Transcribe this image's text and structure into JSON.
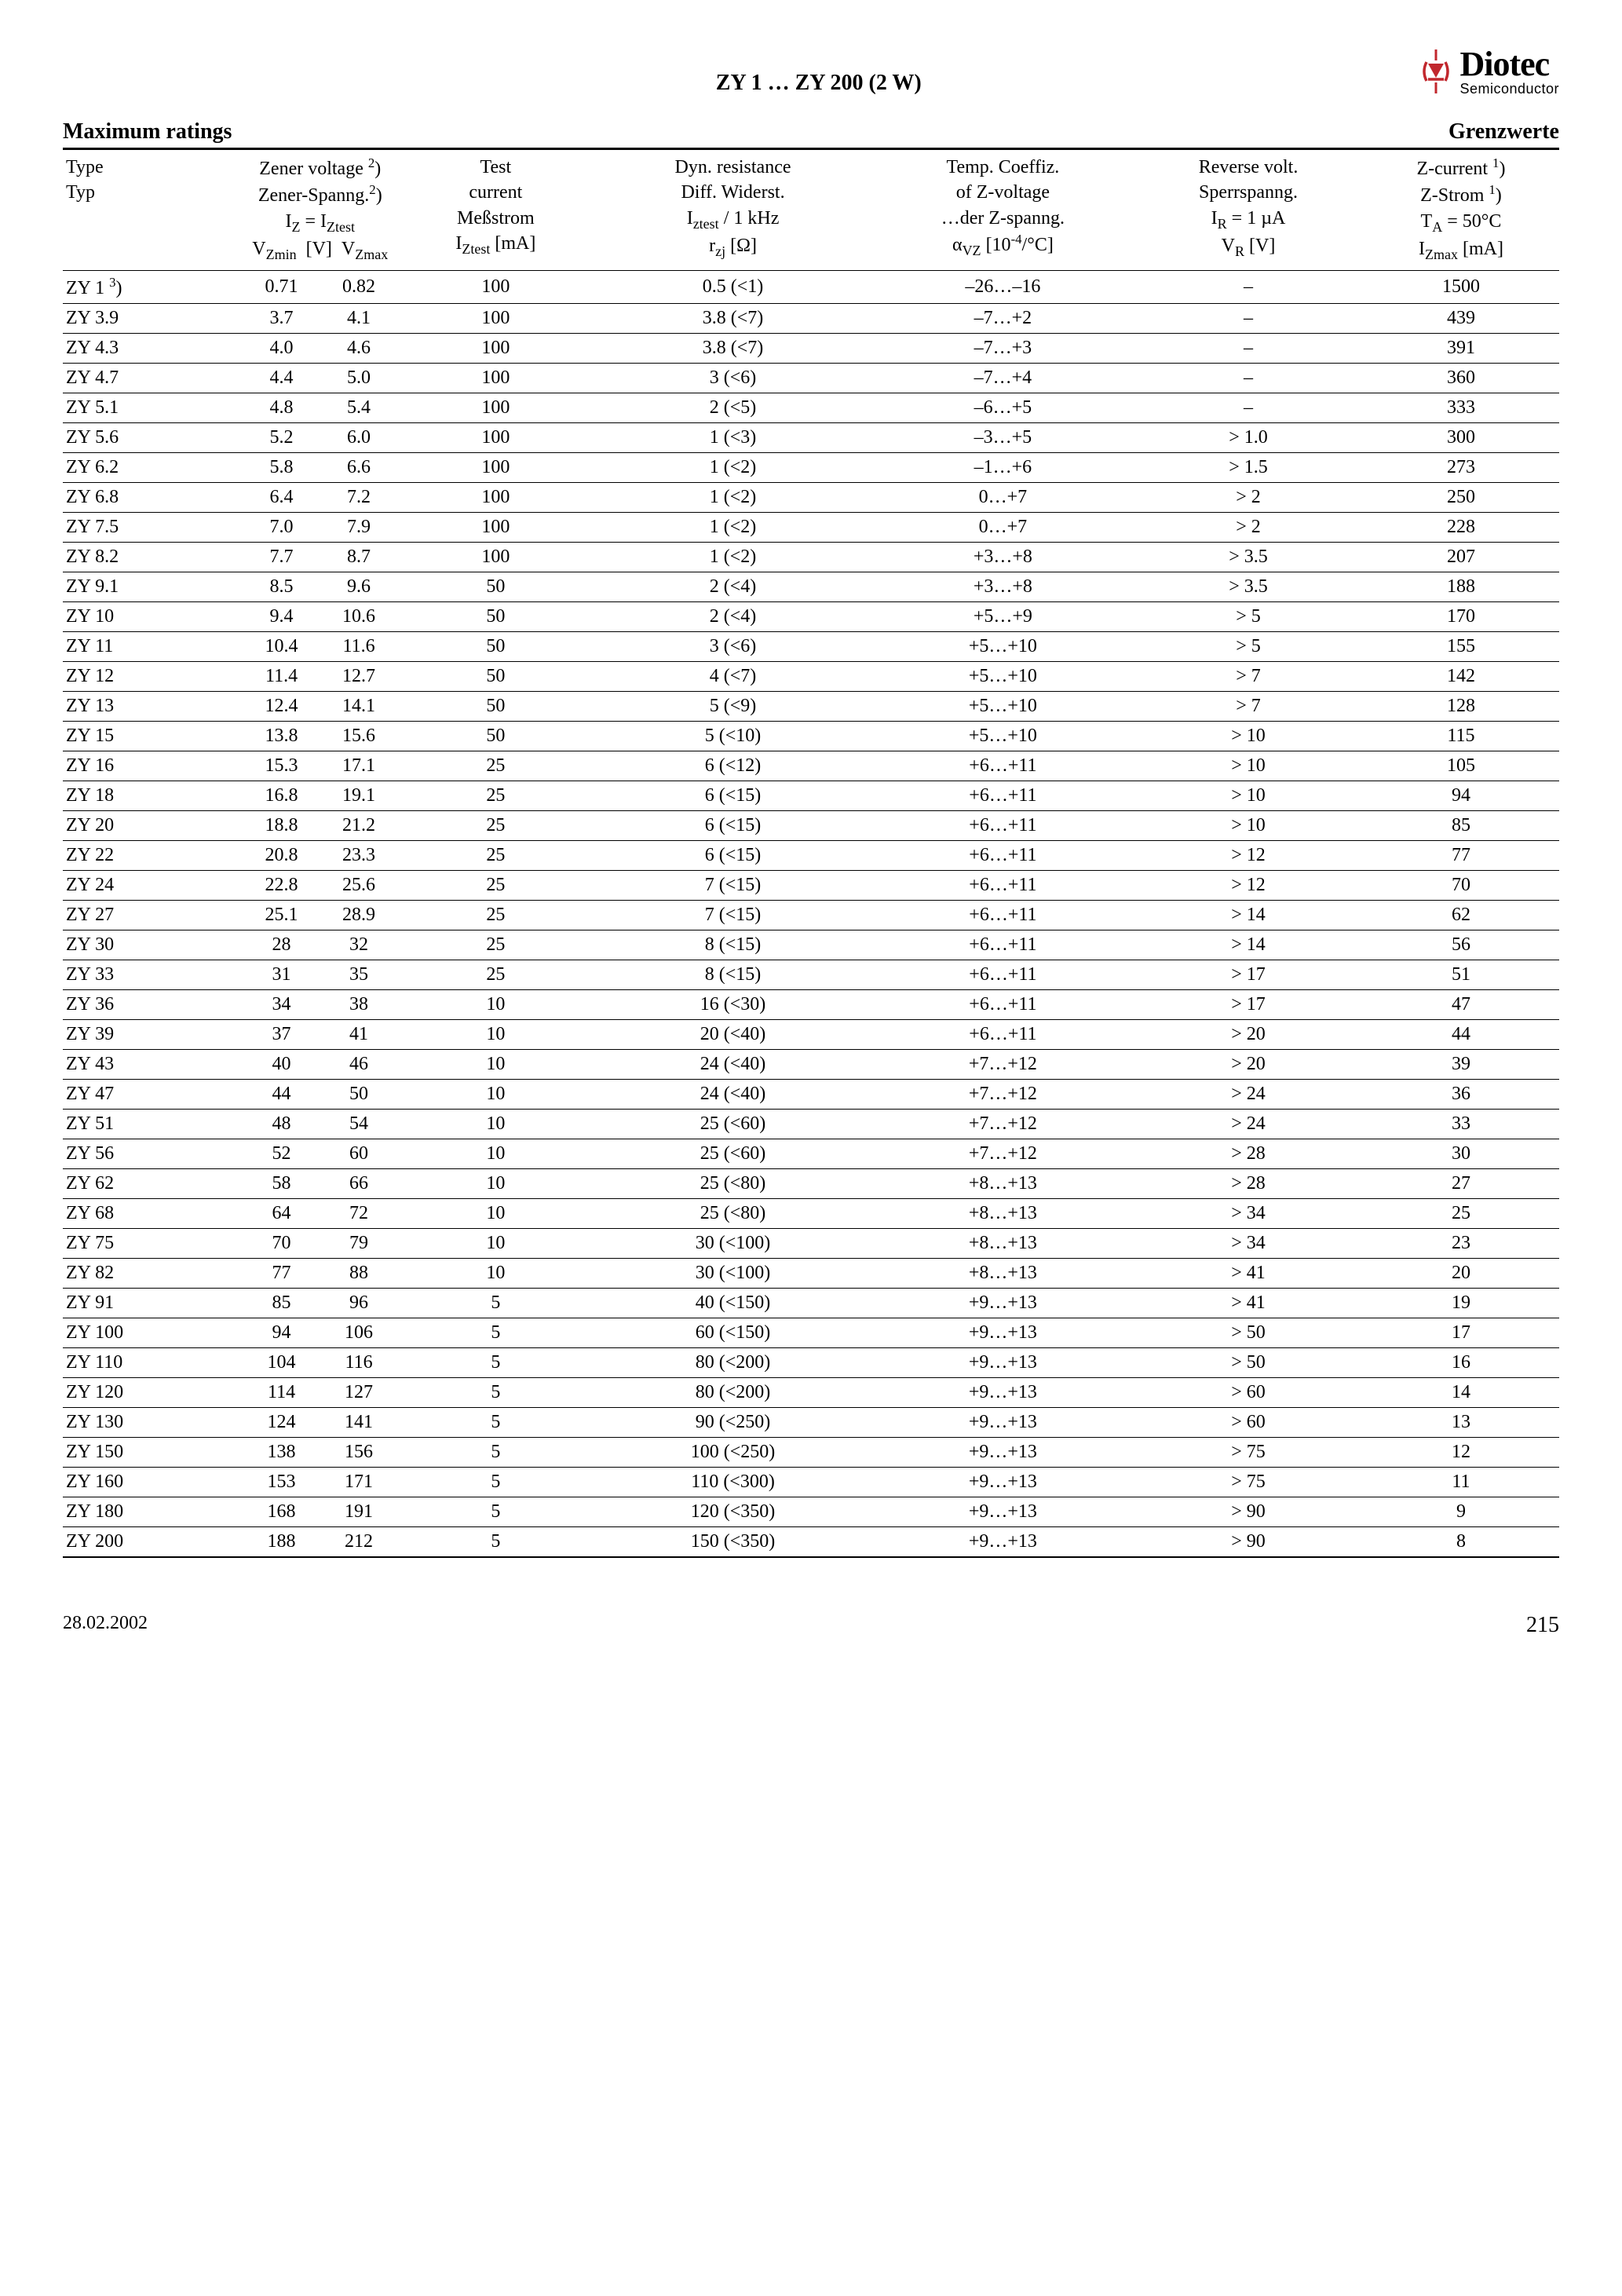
{
  "doc_title": "ZY 1 … ZY 200 (2 W)",
  "logo": {
    "big": "Diotec",
    "small": "Semiconductor"
  },
  "section": {
    "left": "Maximum ratings",
    "right": "Grenzwerte"
  },
  "header": {
    "type_l1": "Type",
    "type_l2": "Typ",
    "zener_l1": "Zener voltage ²)",
    "zener_l2": "Zener-Spanng.²)",
    "zener_l3": "I_Z = I_Ztest",
    "zener_l4a": "V_Zmin",
    "zener_l4b": "[V]",
    "zener_l4c": "V_Zmax",
    "test_l1": "Test",
    "test_l2": "current",
    "test_l3": "Meßstrom",
    "test_l4": "I_Ztest [mA]",
    "dyn_l1": "Dyn. resistance",
    "dyn_l2": "Diff. Widerst.",
    "dyn_l3": "I_ztest / 1 kHz",
    "dyn_l4": "r_zj [Ω]",
    "temp_l1": "Temp. Coeffiz.",
    "temp_l2": "of Z-voltage",
    "temp_l3": "…der Z-spanng.",
    "temp_l4": "α_VZ [10⁻⁴/°C]",
    "rev_l1": "Reverse volt.",
    "rev_l2": "Sperrspanng.",
    "rev_l3": "I_R = 1 µA",
    "rev_l4": "V_R [V]",
    "zc_l1": "Z-current ¹)",
    "zc_l2": "Z-Strom ¹)",
    "zc_l3": "T_A = 50°C",
    "zc_l4": "I_Zmax [mA]"
  },
  "rows": [
    {
      "type": "ZY 1 ³)",
      "vzmin": "0.71",
      "vzmax": "0.82",
      "iztest": "100",
      "rzj": "0.5 (<1)",
      "alpha": "–26…–16",
      "vr": "–",
      "izmax": "1500"
    },
    {
      "type": "ZY 3.9",
      "vzmin": "3.7",
      "vzmax": "4.1",
      "iztest": "100",
      "rzj": "3.8 (<7)",
      "alpha": "–7…+2",
      "vr": "–",
      "izmax": "439"
    },
    {
      "type": "ZY 4.3",
      "vzmin": "4.0",
      "vzmax": "4.6",
      "iztest": "100",
      "rzj": "3.8 (<7)",
      "alpha": "–7…+3",
      "vr": "–",
      "izmax": "391"
    },
    {
      "type": "ZY 4.7",
      "vzmin": "4.4",
      "vzmax": "5.0",
      "iztest": "100",
      "rzj": "3 (<6)",
      "alpha": "–7…+4",
      "vr": "–",
      "izmax": "360"
    },
    {
      "type": "ZY 5.1",
      "vzmin": "4.8",
      "vzmax": "5.4",
      "iztest": "100",
      "rzj": "2 (<5)",
      "alpha": "–6…+5",
      "vr": "–",
      "izmax": "333"
    },
    {
      "type": "ZY 5.6",
      "vzmin": "5.2",
      "vzmax": "6.0",
      "iztest": "100",
      "rzj": "1 (<3)",
      "alpha": "–3…+5",
      "vr": "> 1.0",
      "izmax": "300"
    },
    {
      "type": "ZY 6.2",
      "vzmin": "5.8",
      "vzmax": "6.6",
      "iztest": "100",
      "rzj": "1 (<2)",
      "alpha": "–1…+6",
      "vr": "> 1.5",
      "izmax": "273"
    },
    {
      "type": "ZY 6.8",
      "vzmin": "6.4",
      "vzmax": "7.2",
      "iztest": "100",
      "rzj": "1 (<2)",
      "alpha": "0…+7",
      "vr": "> 2",
      "izmax": "250"
    },
    {
      "type": "ZY 7.5",
      "vzmin": "7.0",
      "vzmax": "7.9",
      "iztest": "100",
      "rzj": "1 (<2)",
      "alpha": "0…+7",
      "vr": "> 2",
      "izmax": "228"
    },
    {
      "type": "ZY 8.2",
      "vzmin": "7.7",
      "vzmax": "8.7",
      "iztest": "100",
      "rzj": "1 (<2)",
      "alpha": "+3…+8",
      "vr": "> 3.5",
      "izmax": "207"
    },
    {
      "type": "ZY 9.1",
      "vzmin": "8.5",
      "vzmax": "9.6",
      "iztest": "50",
      "rzj": "2 (<4)",
      "alpha": "+3…+8",
      "vr": "> 3.5",
      "izmax": "188"
    },
    {
      "type": "ZY 10",
      "vzmin": "9.4",
      "vzmax": "10.6",
      "iztest": "50",
      "rzj": "2 (<4)",
      "alpha": "+5…+9",
      "vr": "> 5",
      "izmax": "170"
    },
    {
      "type": "ZY 11",
      "vzmin": "10.4",
      "vzmax": "11.6",
      "iztest": "50",
      "rzj": "3 (<6)",
      "alpha": "+5…+10",
      "vr": "> 5",
      "izmax": "155"
    },
    {
      "type": "ZY 12",
      "vzmin": "11.4",
      "vzmax": "12.7",
      "iztest": "50",
      "rzj": "4 (<7)",
      "alpha": "+5…+10",
      "vr": "> 7",
      "izmax": "142"
    },
    {
      "type": "ZY 13",
      "vzmin": "12.4",
      "vzmax": "14.1",
      "iztest": "50",
      "rzj": "5 (<9)",
      "alpha": "+5…+10",
      "vr": "> 7",
      "izmax": "128"
    },
    {
      "type": "ZY 15",
      "vzmin": "13.8",
      "vzmax": "15.6",
      "iztest": "50",
      "rzj": "5 (<10)",
      "alpha": "+5…+10",
      "vr": "> 10",
      "izmax": "115"
    },
    {
      "type": "ZY 16",
      "vzmin": "15.3",
      "vzmax": "17.1",
      "iztest": "25",
      "rzj": "6 (<12)",
      "alpha": "+6…+11",
      "vr": "> 10",
      "izmax": "105"
    },
    {
      "type": "ZY 18",
      "vzmin": "16.8",
      "vzmax": "19.1",
      "iztest": "25",
      "rzj": "6 (<15)",
      "alpha": "+6…+11",
      "vr": "> 10",
      "izmax": "94"
    },
    {
      "type": "ZY 20",
      "vzmin": "18.8",
      "vzmax": "21.2",
      "iztest": "25",
      "rzj": "6 (<15)",
      "alpha": "+6…+11",
      "vr": "> 10",
      "izmax": "85"
    },
    {
      "type": "ZY 22",
      "vzmin": "20.8",
      "vzmax": "23.3",
      "iztest": "25",
      "rzj": "6 (<15)",
      "alpha": "+6…+11",
      "vr": "> 12",
      "izmax": "77"
    },
    {
      "type": "ZY 24",
      "vzmin": "22.8",
      "vzmax": "25.6",
      "iztest": "25",
      "rzj": "7 (<15)",
      "alpha": "+6…+11",
      "vr": "> 12",
      "izmax": "70"
    },
    {
      "type": "ZY 27",
      "vzmin": "25.1",
      "vzmax": "28.9",
      "iztest": "25",
      "rzj": "7 (<15)",
      "alpha": "+6…+11",
      "vr": "> 14",
      "izmax": "62"
    },
    {
      "type": "ZY 30",
      "vzmin": "28",
      "vzmax": "32",
      "iztest": "25",
      "rzj": "8 (<15)",
      "alpha": "+6…+11",
      "vr": "> 14",
      "izmax": "56"
    },
    {
      "type": "ZY 33",
      "vzmin": "31",
      "vzmax": "35",
      "iztest": "25",
      "rzj": "8 (<15)",
      "alpha": "+6…+11",
      "vr": "> 17",
      "izmax": "51"
    },
    {
      "type": "ZY 36",
      "vzmin": "34",
      "vzmax": "38",
      "iztest": "10",
      "rzj": "16 (<30)",
      "alpha": "+6…+11",
      "vr": "> 17",
      "izmax": "47"
    },
    {
      "type": "ZY 39",
      "vzmin": "37",
      "vzmax": "41",
      "iztest": "10",
      "rzj": "20 (<40)",
      "alpha": "+6…+11",
      "vr": "> 20",
      "izmax": "44"
    },
    {
      "type": "ZY 43",
      "vzmin": "40",
      "vzmax": "46",
      "iztest": "10",
      "rzj": "24 (<40)",
      "alpha": "+7…+12",
      "vr": "> 20",
      "izmax": "39"
    },
    {
      "type": "ZY 47",
      "vzmin": "44",
      "vzmax": "50",
      "iztest": "10",
      "rzj": "24 (<40)",
      "alpha": "+7…+12",
      "vr": "> 24",
      "izmax": "36"
    },
    {
      "type": "ZY 51",
      "vzmin": "48",
      "vzmax": "54",
      "iztest": "10",
      "rzj": "25 (<60)",
      "alpha": "+7…+12",
      "vr": "> 24",
      "izmax": "33"
    },
    {
      "type": "ZY 56",
      "vzmin": "52",
      "vzmax": "60",
      "iztest": "10",
      "rzj": "25 (<60)",
      "alpha": "+7…+12",
      "vr": "> 28",
      "izmax": "30"
    },
    {
      "type": "ZY 62",
      "vzmin": "58",
      "vzmax": "66",
      "iztest": "10",
      "rzj": "25 (<80)",
      "alpha": "+8…+13",
      "vr": "> 28",
      "izmax": "27"
    },
    {
      "type": "ZY 68",
      "vzmin": "64",
      "vzmax": "72",
      "iztest": "10",
      "rzj": "25 (<80)",
      "alpha": "+8…+13",
      "vr": "> 34",
      "izmax": "25"
    },
    {
      "type": "ZY 75",
      "vzmin": "70",
      "vzmax": "79",
      "iztest": "10",
      "rzj": "30 (<100)",
      "alpha": "+8…+13",
      "vr": "> 34",
      "izmax": "23"
    },
    {
      "type": "ZY 82",
      "vzmin": "77",
      "vzmax": "88",
      "iztest": "10",
      "rzj": "30 (<100)",
      "alpha": "+8…+13",
      "vr": "> 41",
      "izmax": "20"
    },
    {
      "type": "ZY 91",
      "vzmin": "85",
      "vzmax": "96",
      "iztest": "5",
      "rzj": "40 (<150)",
      "alpha": "+9…+13",
      "vr": "> 41",
      "izmax": "19"
    },
    {
      "type": "ZY 100",
      "vzmin": "94",
      "vzmax": "106",
      "iztest": "5",
      "rzj": "60 (<150)",
      "alpha": "+9…+13",
      "vr": "> 50",
      "izmax": "17"
    },
    {
      "type": "ZY 110",
      "vzmin": "104",
      "vzmax": "116",
      "iztest": "5",
      "rzj": "80 (<200)",
      "alpha": "+9…+13",
      "vr": "> 50",
      "izmax": "16"
    },
    {
      "type": "ZY 120",
      "vzmin": "114",
      "vzmax": "127",
      "iztest": "5",
      "rzj": "80 (<200)",
      "alpha": "+9…+13",
      "vr": "> 60",
      "izmax": "14"
    },
    {
      "type": "ZY 130",
      "vzmin": "124",
      "vzmax": "141",
      "iztest": "5",
      "rzj": "90 (<250)",
      "alpha": "+9…+13",
      "vr": "> 60",
      "izmax": "13"
    },
    {
      "type": "ZY 150",
      "vzmin": "138",
      "vzmax": "156",
      "iztest": "5",
      "rzj": "100 (<250)",
      "alpha": "+9…+13",
      "vr": "> 75",
      "izmax": "12"
    },
    {
      "type": "ZY 160",
      "vzmin": "153",
      "vzmax": "171",
      "iztest": "5",
      "rzj": "110 (<300)",
      "alpha": "+9…+13",
      "vr": "> 75",
      "izmax": "11"
    },
    {
      "type": "ZY 180",
      "vzmin": "168",
      "vzmax": "191",
      "iztest": "5",
      "rzj": "120 (<350)",
      "alpha": "+9…+13",
      "vr": "> 90",
      "izmax": "9"
    },
    {
      "type": "ZY 200",
      "vzmin": "188",
      "vzmax": "212",
      "iztest": "5",
      "rzj": "150 (<350)",
      "alpha": "+9…+13",
      "vr": "> 90",
      "izmax": "8"
    }
  ],
  "footer": {
    "date": "28.02.2002",
    "page": "215"
  }
}
